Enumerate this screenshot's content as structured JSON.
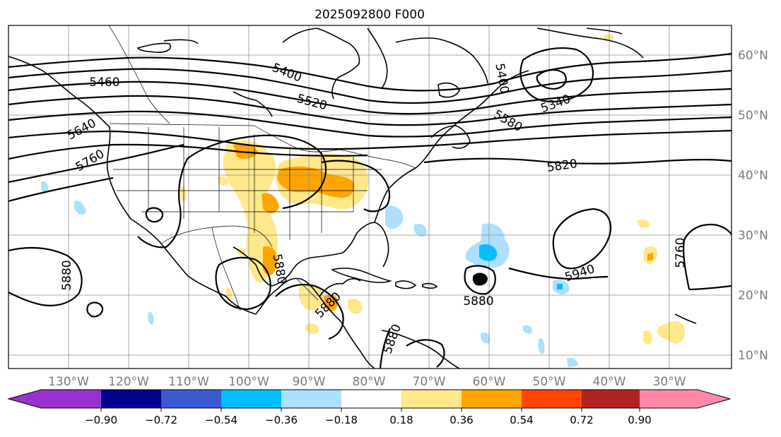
{
  "map": {
    "title": "2025092800 F000",
    "longitude_labels": [
      "130°W",
      "120°W",
      "110°W",
      "100°W",
      "90°W",
      "80°W",
      "70°W",
      "60°W",
      "50°W",
      "40°W",
      "30°W"
    ],
    "latitude_labels": [
      "60°N",
      "50°N",
      "40°N",
      "30°N",
      "20°N",
      "10°N"
    ],
    "contour_labels": [
      "5460",
      "5400",
      "5520",
      "5400",
      "5340",
      "5580",
      "5640",
      "5760",
      "5820",
      "5880",
      "5880",
      "5880",
      "5880",
      "5880",
      "5940",
      "5760"
    ],
    "colors": {
      "contour": "#000000",
      "coast": "#000000",
      "grid": "#8c8c8c"
    }
  },
  "colorbar": {
    "tick_labels": [
      "−0.90",
      "−0.72",
      "−0.54",
      "−0.36",
      "−0.18",
      "0.18",
      "0.36",
      "0.54",
      "0.72",
      "0.90"
    ],
    "colors": [
      "#9b30d0",
      "#00008b",
      "#3a5bd0",
      "#00bfff",
      "#addfff",
      "#ffffff",
      "#ffe88a",
      "#ffa500",
      "#ff4500",
      "#b22222",
      "#ff88aa"
    ]
  }
}
